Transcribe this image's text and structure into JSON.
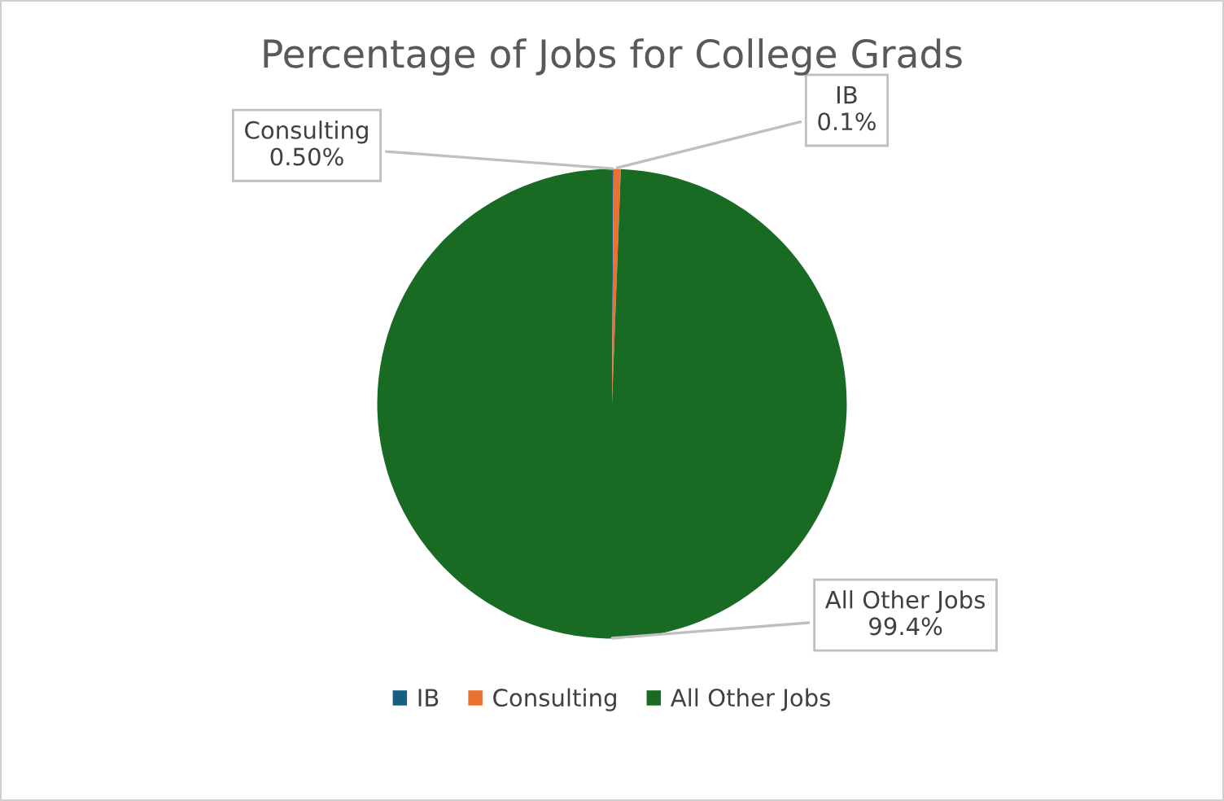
{
  "chart_data": {
    "type": "pie",
    "title": "Percentage of Jobs for College Grads",
    "categories": [
      "IB",
      "Consulting",
      "All Other Jobs"
    ],
    "values": [
      0.1,
      0.5,
      99.4
    ],
    "colors": [
      "#156082",
      "#e97132",
      "#196b24"
    ],
    "value_labels": [
      "0.1%",
      "0.50%",
      "99.4%"
    ],
    "legend": "bottom"
  }
}
